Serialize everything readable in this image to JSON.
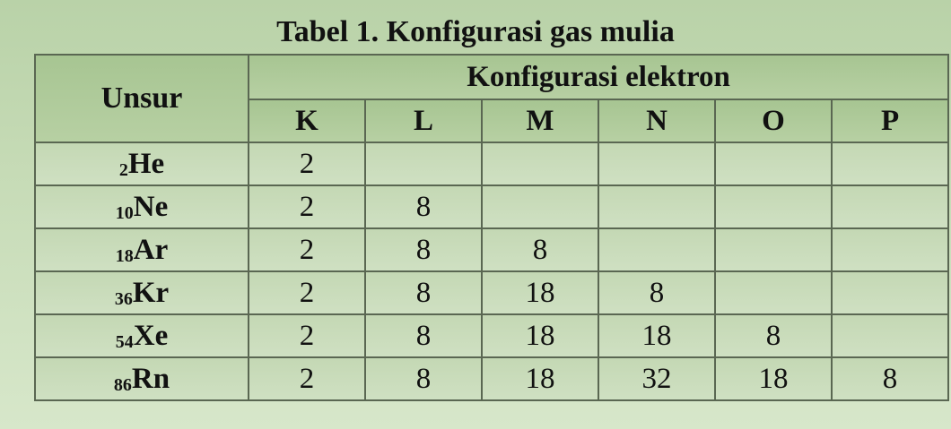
{
  "title": "Tabel 1. Konfigurasi gas mulia",
  "table": {
    "element_header": "Unsur",
    "group_header": "Konfigurasi elektron",
    "shells": [
      "K",
      "L",
      "M",
      "N",
      "O",
      "P"
    ],
    "rows": [
      {
        "number": "2",
        "symbol": "He",
        "values": [
          "2",
          "",
          "",
          "",
          "",
          ""
        ]
      },
      {
        "number": "10",
        "symbol": "Ne",
        "values": [
          "2",
          "8",
          "",
          "",
          "",
          ""
        ]
      },
      {
        "number": "18",
        "symbol": "Ar",
        "values": [
          "2",
          "8",
          "8",
          "",
          "",
          ""
        ]
      },
      {
        "number": "36",
        "symbol": "Kr",
        "values": [
          "2",
          "8",
          "18",
          "8",
          "",
          ""
        ]
      },
      {
        "number": "54",
        "symbol": "Xe",
        "values": [
          "2",
          "8",
          "18",
          "18",
          "8",
          ""
        ]
      },
      {
        "number": "86",
        "symbol": "Rn",
        "values": [
          "2",
          "8",
          "18",
          "32",
          "18",
          "8"
        ]
      }
    ]
  }
}
